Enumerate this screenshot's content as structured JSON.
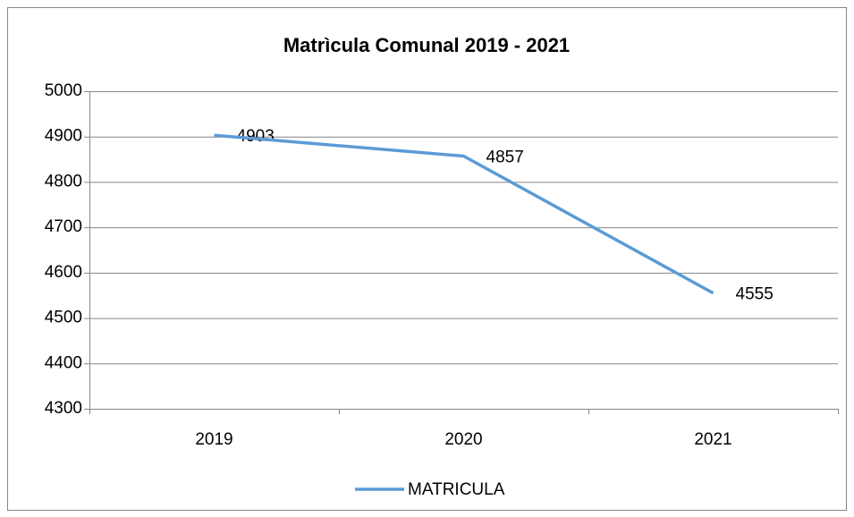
{
  "chart_data": {
    "type": "line",
    "title": "Matrìcula Comunal 2019 - 2021",
    "categories": [
      "2019",
      "2020",
      "2021"
    ],
    "series": [
      {
        "name": "MATRICULA",
        "color": "#5b9bd5",
        "values": [
          4903,
          4857,
          4555
        ]
      }
    ],
    "ylim": [
      4300,
      5000
    ],
    "yticks": [
      4300,
      4400,
      4500,
      4600,
      4700,
      4800,
      4900,
      5000
    ],
    "grid": true,
    "legend": "bottom",
    "data_labels": true
  }
}
